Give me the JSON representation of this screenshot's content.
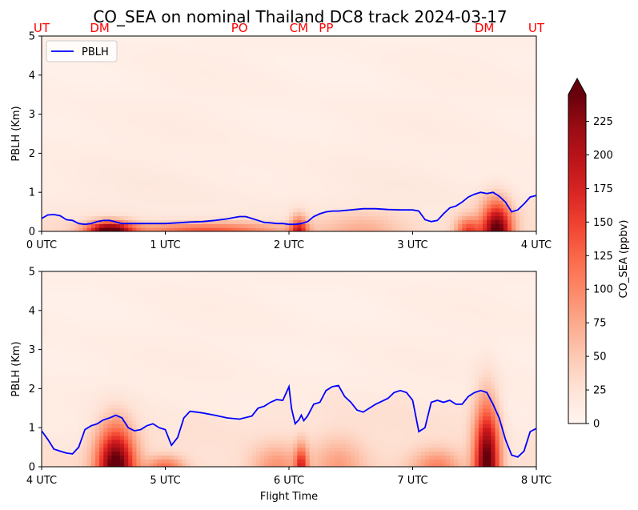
{
  "chart_data": {
    "title": "CO_SEA on nominal Thailand DC8 track 2024-03-17",
    "xlabel": "Flight Time",
    "colorbar": {
      "label": "CO_SEA (ppbv)",
      "ticks": [
        0,
        25,
        50,
        75,
        100,
        125,
        150,
        175,
        200,
        225
      ],
      "range": [
        0,
        245
      ],
      "extend": "max",
      "colormap": "Reds"
    },
    "location_labels": [
      {
        "label": "UT",
        "x": 0.0
      },
      {
        "label": "DM",
        "x": 0.47
      },
      {
        "label": "PO",
        "x": 1.6
      },
      {
        "label": "CM",
        "x": 2.08
      },
      {
        "label": "PP",
        "x": 2.3
      },
      {
        "label": "DM",
        "x": 3.58
      },
      {
        "label": "UT",
        "x": 4.0
      }
    ],
    "location_label_color": "#ff0000",
    "pblh_color": "#0000ff",
    "panels": [
      {
        "type": "heatmap",
        "ylabel": "PBLH (Km)",
        "ylim": [
          0,
          5
        ],
        "yticks": [
          "0",
          "1",
          "2",
          "3",
          "4",
          "5"
        ],
        "xlim": [
          0,
          4
        ],
        "xticks": [
          "0 UTC",
          "1 UTC",
          "2 UTC",
          "3 UTC",
          "4 UTC"
        ],
        "legend": {
          "position": "upper-left",
          "entries": [
            "PBLH"
          ]
        },
        "series": [
          {
            "name": "PBLH",
            "x": [
              0.0,
              0.05,
              0.1,
              0.15,
              0.2,
              0.25,
              0.3,
              0.35,
              0.4,
              0.45,
              0.5,
              0.55,
              0.6,
              0.65,
              0.7,
              0.75,
              0.8,
              0.9,
              1.0,
              1.1,
              1.2,
              1.3,
              1.4,
              1.5,
              1.55,
              1.6,
              1.65,
              1.7,
              1.75,
              1.8,
              1.85,
              1.9,
              1.95,
              2.0,
              2.05,
              2.1,
              2.15,
              2.2,
              2.25,
              2.3,
              2.35,
              2.4,
              2.5,
              2.6,
              2.7,
              2.8,
              2.9,
              3.0,
              3.05,
              3.1,
              3.15,
              3.2,
              3.25,
              3.3,
              3.35,
              3.4,
              3.45,
              3.5,
              3.55,
              3.6,
              3.65,
              3.7,
              3.75,
              3.8,
              3.85,
              3.9,
              3.95,
              4.0
            ],
            "y": [
              0.33,
              0.42,
              0.43,
              0.4,
              0.3,
              0.28,
              0.2,
              0.18,
              0.2,
              0.25,
              0.28,
              0.28,
              0.24,
              0.2,
              0.2,
              0.2,
              0.2,
              0.2,
              0.2,
              0.22,
              0.24,
              0.25,
              0.28,
              0.32,
              0.35,
              0.38,
              0.38,
              0.33,
              0.28,
              0.23,
              0.22,
              0.2,
              0.2,
              0.18,
              0.18,
              0.2,
              0.25,
              0.38,
              0.45,
              0.5,
              0.52,
              0.52,
              0.55,
              0.58,
              0.58,
              0.56,
              0.55,
              0.55,
              0.52,
              0.3,
              0.25,
              0.28,
              0.45,
              0.6,
              0.65,
              0.75,
              0.88,
              0.95,
              1.0,
              0.97,
              1.0,
              0.9,
              0.75,
              0.5,
              0.55,
              0.7,
              0.88,
              0.92
            ]
          }
        ]
      },
      {
        "type": "heatmap",
        "ylabel": "PBLH (Km)",
        "ylim": [
          0,
          5
        ],
        "yticks": [
          "0",
          "1",
          "2",
          "3",
          "4",
          "5"
        ],
        "xlim": [
          4,
          8
        ],
        "xticks": [
          "4 UTC",
          "5 UTC",
          "6 UTC",
          "7 UTC",
          "8 UTC"
        ],
        "series": [
          {
            "name": "PBLH",
            "x": [
              4.0,
              4.05,
              4.1,
              4.15,
              4.2,
              4.25,
              4.3,
              4.35,
              4.4,
              4.45,
              4.5,
              4.55,
              4.6,
              4.65,
              4.7,
              4.75,
              4.8,
              4.85,
              4.9,
              4.95,
              5.0,
              5.05,
              5.1,
              5.15,
              5.2,
              5.3,
              5.4,
              5.5,
              5.6,
              5.7,
              5.75,
              5.8,
              5.85,
              5.9,
              5.95,
              6.0,
              6.02,
              6.05,
              6.08,
              6.1,
              6.12,
              6.15,
              6.2,
              6.25,
              6.3,
              6.35,
              6.4,
              6.45,
              6.5,
              6.55,
              6.6,
              6.7,
              6.8,
              6.85,
              6.9,
              6.95,
              7.0,
              7.05,
              7.1,
              7.15,
              7.2,
              7.25,
              7.3,
              7.35,
              7.4,
              7.45,
              7.5,
              7.55,
              7.6,
              7.65,
              7.7,
              7.75,
              7.8,
              7.85,
              7.9,
              7.95,
              8.0
            ],
            "y": [
              0.92,
              0.7,
              0.45,
              0.4,
              0.35,
              0.33,
              0.5,
              0.95,
              1.05,
              1.1,
              1.2,
              1.25,
              1.32,
              1.25,
              1.0,
              0.92,
              0.95,
              1.05,
              1.1,
              1.0,
              0.95,
              0.55,
              0.75,
              1.25,
              1.42,
              1.38,
              1.32,
              1.25,
              1.22,
              1.3,
              1.5,
              1.55,
              1.65,
              1.72,
              1.7,
              2.05,
              1.5,
              1.1,
              1.2,
              1.32,
              1.18,
              1.3,
              1.6,
              1.65,
              1.95,
              2.05,
              2.08,
              1.8,
              1.65,
              1.45,
              1.4,
              1.6,
              1.75,
              1.9,
              1.95,
              1.9,
              1.7,
              0.9,
              1.0,
              1.65,
              1.7,
              1.65,
              1.7,
              1.6,
              1.6,
              1.8,
              1.9,
              1.95,
              1.9,
              1.6,
              1.25,
              0.7,
              0.3,
              0.25,
              0.4,
              0.9,
              0.98
            ]
          }
        ]
      }
    ]
  }
}
